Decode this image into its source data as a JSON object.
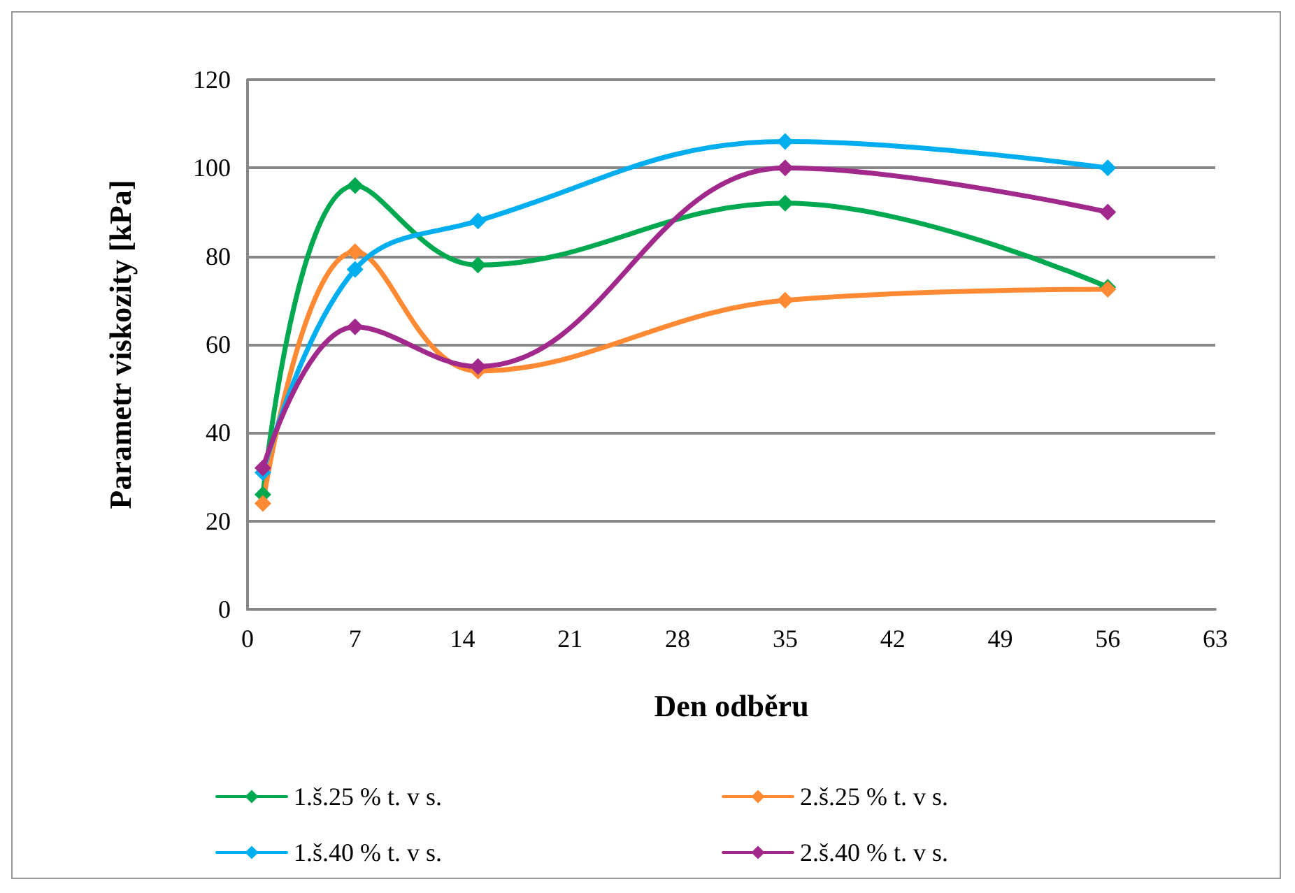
{
  "chart_data": {
    "type": "line",
    "xlabel": "Den odběru",
    "ylabel": "Parametr viskozity [kPa]",
    "x": [
      1,
      7,
      15,
      35,
      56
    ],
    "series": [
      {
        "name": "1.š.25 % t. v s.",
        "color": "#00a84f",
        "values": [
          26,
          96,
          78,
          92,
          73
        ]
      },
      {
        "name": "2.š.25 % t. v s.",
        "color": "#ff8a33",
        "values": [
          24,
          81,
          54,
          70,
          72.5
        ]
      },
      {
        "name": "1.š.40 % t. v s.",
        "color": "#00aeef",
        "values": [
          31,
          77,
          88,
          106,
          100
        ]
      },
      {
        "name": "2.š.40 % t. v s.",
        "color": "#a1298b",
        "values": [
          32,
          64,
          55,
          100,
          90
        ]
      }
    ],
    "xlim": [
      0,
      63
    ],
    "xticks": [
      0,
      7,
      14,
      21,
      28,
      35,
      42,
      49,
      56,
      63
    ],
    "ylim": [
      0,
      120
    ],
    "yticks": [
      0,
      20,
      40,
      60,
      80,
      100,
      120
    ],
    "grid": "y",
    "legend": "bottom",
    "marker": "diamond",
    "line_style": "solid"
  }
}
